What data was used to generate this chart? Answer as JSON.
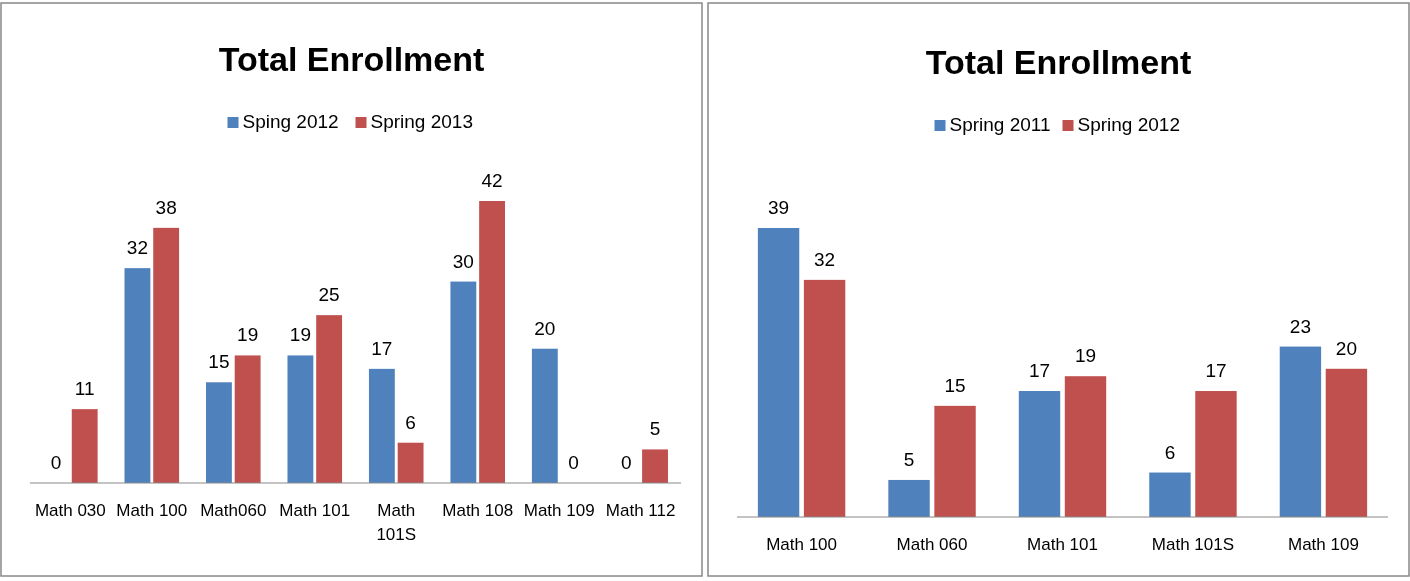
{
  "chart_data": [
    {
      "type": "bar",
      "title": "Total Enrollment",
      "categories": [
        "Math 030",
        "Math 100",
        "Math060",
        "Math 101",
        "Math 101S",
        "Math 108",
        "Math 109",
        "Math 112"
      ],
      "series": [
        {
          "name": "Sping 2012",
          "color": "#4f81bd",
          "values": [
            0,
            32,
            15,
            19,
            17,
            30,
            20,
            0
          ]
        },
        {
          "name": "Spring 2013",
          "color": "#c0504d",
          "values": [
            11,
            38,
            19,
            25,
            6,
            42,
            0,
            5
          ]
        }
      ],
      "data_labels": true,
      "legend": "top",
      "grid": false
    },
    {
      "type": "bar",
      "title": "Total Enrollment",
      "categories": [
        "Math 100",
        "Math 060",
        "Math 101",
        "Math 101S",
        "Math 109"
      ],
      "series": [
        {
          "name": "Spring 2011",
          "color": "#4f81bd",
          "values": [
            39,
            5,
            17,
            6,
            23
          ]
        },
        {
          "name": "Spring 2012",
          "color": "#c0504d",
          "values": [
            32,
            15,
            19,
            17,
            20
          ]
        }
      ],
      "data_labels": true,
      "legend": "top",
      "grid": false
    }
  ]
}
